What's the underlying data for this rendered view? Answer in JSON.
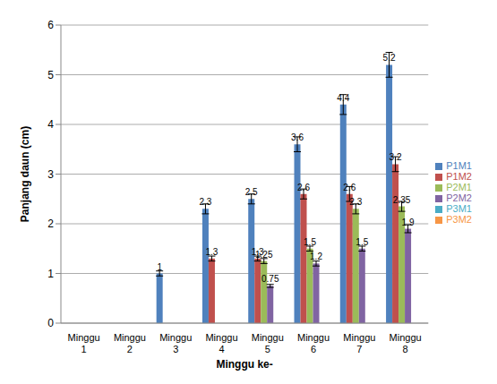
{
  "chart_data": {
    "type": "bar",
    "x_label": "Minggu ke-",
    "y_label": "Panjang daun (cm)",
    "categories": [
      "Minggu 1",
      "Minggu 2",
      "Minggu 3",
      "Minggu 4",
      "Minggu 5",
      "Minggu 6",
      "Minggu 7",
      "Minggu 8"
    ],
    "series": [
      {
        "name": "P1M1",
        "color": "#4f81bd",
        "values": [
          0,
          0,
          1,
          2.3,
          2.5,
          3.6,
          4.4,
          5.2
        ],
        "error": [
          0,
          0,
          0.05,
          0.1,
          0.1,
          0.15,
          0.2,
          0.25
        ]
      },
      {
        "name": "P1M2",
        "color": "#c0504d",
        "values": [
          0,
          0,
          0,
          1.3,
          1.3,
          2.6,
          2.6,
          3.2
        ],
        "error": [
          0,
          0,
          0,
          0.05,
          0.05,
          0.1,
          0.15,
          0.15
        ]
      },
      {
        "name": "P2M1",
        "color": "#9bbb59",
        "values": [
          0,
          0,
          0,
          0,
          1.25,
          1.5,
          2.3,
          2.35
        ],
        "error": [
          0,
          0,
          0,
          0,
          0.05,
          0.05,
          0.1,
          0.1
        ]
      },
      {
        "name": "P2M2",
        "color": "#8064a2",
        "values": [
          0,
          0,
          0,
          0,
          0.75,
          1.2,
          1.5,
          1.9
        ],
        "error": [
          0,
          0,
          0,
          0,
          0.03,
          0.05,
          0.05,
          0.08
        ]
      },
      {
        "name": "P3M1",
        "color": "#4bacc6",
        "values": [
          0,
          0,
          0,
          0,
          0,
          0,
          0,
          0
        ],
        "error": [
          0,
          0,
          0,
          0,
          0,
          0,
          0,
          0
        ]
      },
      {
        "name": "P3M2",
        "color": "#f79646",
        "values": [
          0,
          0,
          0,
          0,
          0,
          0,
          0,
          0
        ],
        "error": [
          0,
          0,
          0,
          0,
          0,
          0,
          0,
          0
        ]
      }
    ],
    "ylim": [
      0,
      6
    ],
    "yticks": [
      0,
      1,
      2,
      3,
      4,
      5,
      6
    ],
    "grid": true,
    "legend": "right",
    "data_labels": true
  }
}
